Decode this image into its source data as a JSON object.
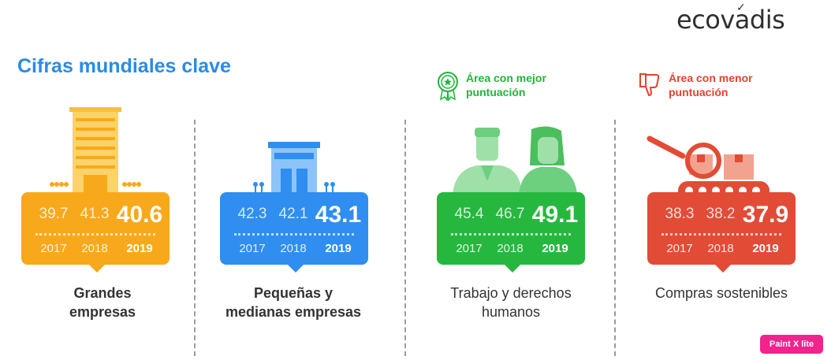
{
  "logo": {
    "text": "ecovadis"
  },
  "title": "Cifras mundiales clave",
  "callouts": {
    "best": {
      "text": "Área con mejor\npuntuación",
      "color": "#20b53a",
      "icon": "award-rosette-icon"
    },
    "worst": {
      "text": "Área con menor\npuntuación",
      "color": "#e5412f",
      "icon": "thumbs-down-icon"
    }
  },
  "cards": [
    {
      "color": "#f8a91b",
      "values": [
        "39.7",
        "41.3",
        "40.6"
      ],
      "years": [
        "2017",
        "2018",
        "2019"
      ],
      "label": "Grandes\nempresas"
    },
    {
      "color": "#2f8ef0",
      "values": [
        "42.3",
        "42.1",
        "43.1"
      ],
      "years": [
        "2017",
        "2018",
        "2019"
      ],
      "label": "Pequeñas y\nmedianas empresas"
    },
    {
      "color": "#26b83e",
      "values": [
        "45.4",
        "46.7",
        "49.1"
      ],
      "years": [
        "2017",
        "2018",
        "2019"
      ],
      "label": "Trabajo y derechos\nhumanos"
    },
    {
      "color": "#e24b36",
      "values": [
        "38.3",
        "38.2",
        "37.9"
      ],
      "years": [
        "2017",
        "2018",
        "2019"
      ],
      "label": "Compras sostenibles"
    }
  ],
  "badge": {
    "text": "Paint X lite"
  }
}
